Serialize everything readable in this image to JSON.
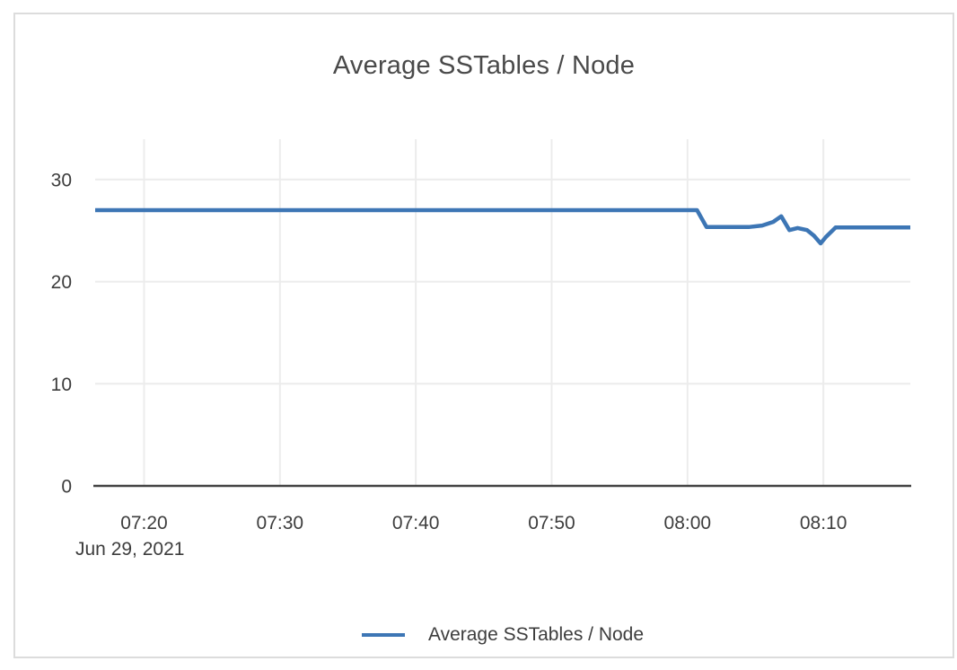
{
  "chart_data": {
    "type": "line",
    "title": "Average SSTables / Node",
    "date_label": "Jun 29, 2021",
    "grid": true,
    "x_axis": {
      "unit": "time of day (HH:MM) on Jun 29, 2021; t = minutes since midnight",
      "range_minutes": [
        436.4,
        496.4
      ],
      "ticks": [
        {
          "t": 440,
          "label": "07:20"
        },
        {
          "t": 450,
          "label": "07:30"
        },
        {
          "t": 460,
          "label": "07:40"
        },
        {
          "t": 470,
          "label": "07:50"
        },
        {
          "t": 480,
          "label": "08:00"
        },
        {
          "t": 490,
          "label": "08:10"
        }
      ]
    },
    "y_axis": {
      "range": [
        0,
        33.95
      ],
      "ticks": [
        {
          "v": 0,
          "label": "0"
        },
        {
          "v": 10,
          "label": "10"
        },
        {
          "v": 20,
          "label": "20"
        },
        {
          "v": 30,
          "label": "30"
        }
      ]
    },
    "legend": {
      "position": "bottom",
      "items": [
        {
          "label": "Average SSTables / Node",
          "color": "#3d76b5"
        }
      ]
    },
    "series": [
      {
        "name": "Average SSTables / Node",
        "color": "#3d76b5",
        "points": [
          {
            "t": 436.4,
            "v": 27.0
          },
          {
            "t": 480.7,
            "v": 27.0
          },
          {
            "t": 481.4,
            "v": 25.35
          },
          {
            "t": 484.5,
            "v": 25.35
          },
          {
            "t": 485.5,
            "v": 25.5
          },
          {
            "t": 486.3,
            "v": 25.85
          },
          {
            "t": 486.9,
            "v": 26.4
          },
          {
            "t": 487.5,
            "v": 25.05
          },
          {
            "t": 488.1,
            "v": 25.25
          },
          {
            "t": 488.8,
            "v": 25.05
          },
          {
            "t": 489.3,
            "v": 24.5
          },
          {
            "t": 489.8,
            "v": 23.75
          },
          {
            "t": 490.2,
            "v": 24.4
          },
          {
            "t": 490.9,
            "v": 25.3
          },
          {
            "t": 496.4,
            "v": 25.3
          }
        ]
      }
    ]
  },
  "colors": {
    "line": "#3d76b5",
    "grid": "#ececec",
    "axis": "#424242",
    "tick_text": "#3d3d3d",
    "title_text": "#4a4a4a",
    "card_border": "#dcdcdc"
  }
}
